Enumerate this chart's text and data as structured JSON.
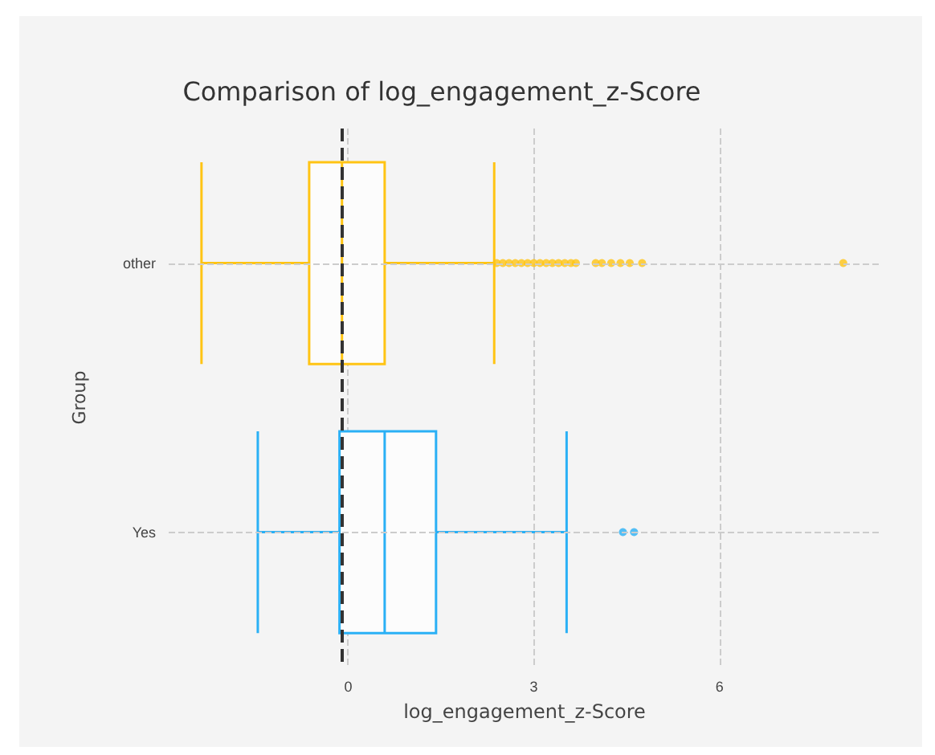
{
  "chart_data": {
    "type": "box",
    "title": "Comparison of log_engagement_z-Score",
    "xlabel": "log_engagement_z-Score",
    "ylabel": "Group",
    "orientation": "horizontal",
    "categories": [
      "other",
      "Yes"
    ],
    "colors": [
      "#ffc414",
      "#2ab0f5"
    ],
    "boxes": [
      {
        "low": -2.37,
        "q1": -0.63,
        "median": -0.1,
        "q3": 0.59,
        "high": 2.36,
        "outliers": [
          2.4,
          2.5,
          2.6,
          2.7,
          2.8,
          2.9,
          3.0,
          3.1,
          3.2,
          3.3,
          3.4,
          3.5,
          3.6,
          3.68,
          4.0,
          4.1,
          4.25,
          4.4,
          4.55,
          4.75,
          8.0
        ]
      },
      {
        "low": -1.46,
        "q1": -0.14,
        "median": 0.59,
        "q3": 1.42,
        "high": 3.53,
        "outliers": [
          4.44,
          4.62
        ]
      }
    ],
    "xlim": [
      -2.9,
      8.6
    ],
    "xticks": [
      0,
      3,
      6
    ],
    "grid": true,
    "ref_lines": [
      {
        "axis": "x",
        "value": -0.1,
        "color": "#333333",
        "line_style": "dashed"
      }
    ]
  }
}
